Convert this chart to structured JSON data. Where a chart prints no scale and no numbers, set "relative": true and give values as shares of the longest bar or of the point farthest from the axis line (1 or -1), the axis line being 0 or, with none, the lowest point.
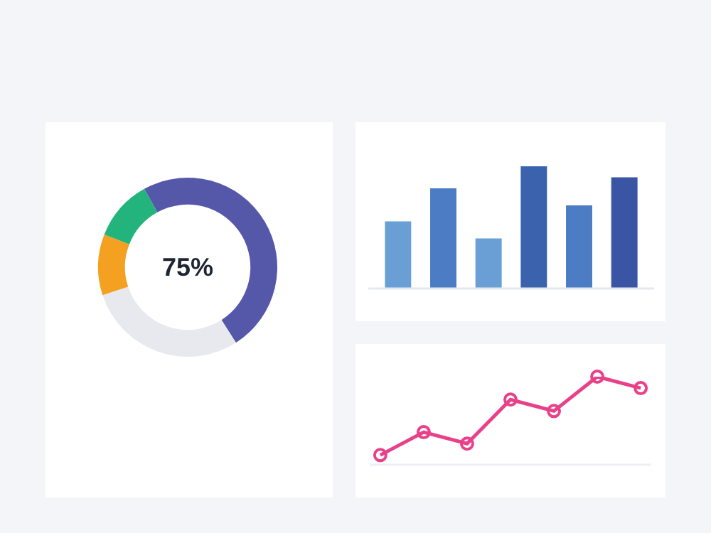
{
  "chart_data": [
    {
      "type": "donut",
      "categories": [
        null,
        null,
        null,
        null
      ],
      "values": [
        49,
        29,
        11,
        11
      ],
      "colors": [
        "#5557a8",
        "#e8e9ef",
        "#f4a021",
        "#22b47c"
      ],
      "annotations": [
        "75%"
      ]
    },
    {
      "type": "bar",
      "relative": true,
      "categories": [
        null,
        null,
        null,
        null,
        null,
        null
      ],
      "values": [
        0.55,
        0.82,
        0.41,
        1,
        0.68,
        0.91
      ],
      "colors": [
        "#6a9fd6",
        "#4b7cc4",
        "#6a9fd6",
        "#3b62ad",
        "#4b7cc4",
        "#3a55a4"
      ]
    },
    {
      "type": "line",
      "relative": true,
      "categories": [
        null,
        null,
        null,
        null,
        null,
        null,
        null
      ],
      "series": [
        {
          "color": "#e8418a",
          "values": [
            0.11,
            0.37,
            0.24,
            0.74,
            0.61,
            1,
            0.87
          ]
        }
      ],
      "marker": "circle",
      "line_style": "solid"
    }
  ]
}
